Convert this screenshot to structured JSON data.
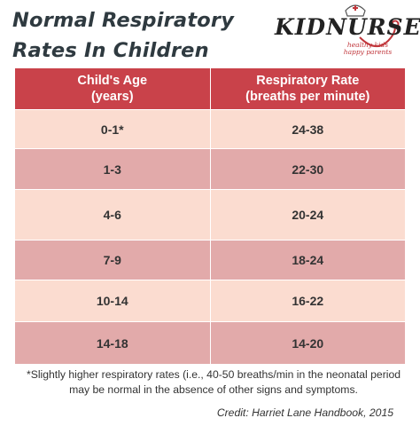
{
  "title": {
    "line1": "Normal Respiratory",
    "line2": "Rates In Children"
  },
  "logo": {
    "text": "KIDNURSE",
    "tagline": "healthy kids\nhappy parents",
    "icon": "nurse-cap-stethoscope-icon",
    "accent_color": "#c0353a"
  },
  "table": {
    "header_color": "#c9424a",
    "row_light_color": "#fbdcd0",
    "row_dark_color": "#e2aaaa",
    "columns": [
      {
        "line1": "Child's Age",
        "line2": "(years)"
      },
      {
        "line1": "Respiratory Rate",
        "line2": "(breaths per minute)"
      }
    ],
    "rows": [
      {
        "age": "0-1*",
        "rate": "24-38"
      },
      {
        "age": "1-3",
        "rate": "22-30"
      },
      {
        "age": "4-6",
        "rate": "20-24"
      },
      {
        "age": "7-9",
        "rate": "18-24"
      },
      {
        "age": "10-14",
        "rate": "16-22"
      },
      {
        "age": "14-18",
        "rate": "14-20"
      }
    ]
  },
  "footnote": "*Slightly higher respiratory rates (i.e., 40-50 breaths/min in the neonatal period may be normal in the absence of other signs and symptoms.",
  "credit": "Credit: Harriet Lane Handbook, 2015"
}
